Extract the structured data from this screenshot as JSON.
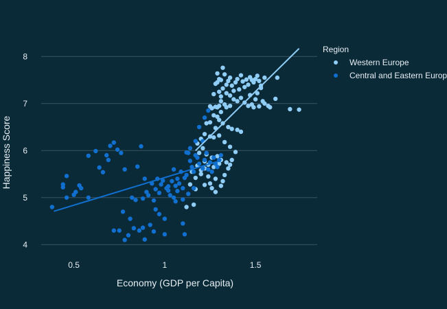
{
  "chart_data": {
    "type": "scatter",
    "xlabel": "Economy (GDP per Capita)",
    "ylabel": "Happiness Score",
    "xlim": [
      0.32,
      1.84
    ],
    "ylim": [
      3.8,
      8.5
    ],
    "xticks": [
      0.5,
      1,
      1.5
    ],
    "xtick_labels": [
      "0.5",
      "1",
      "1.5"
    ],
    "yticks": [
      4,
      5,
      6,
      7,
      8
    ],
    "ytick_labels": [
      "4",
      "5",
      "6",
      "7",
      "8"
    ],
    "grid": "horizontal",
    "legend": {
      "title": "Region",
      "placement": "right"
    },
    "series": [
      {
        "name": "Western Europe",
        "color": "#8fcdf6",
        "trendline": {
          "x": [
            1.17,
            1.74
          ],
          "y": [
            6.0,
            8.17
          ]
        },
        "points": [
          [
            1.74,
            6.87
          ],
          [
            1.69,
            6.88
          ],
          [
            1.62,
            7.55
          ],
          [
            1.61,
            7.1
          ],
          [
            1.58,
            6.92
          ],
          [
            1.57,
            6.95
          ],
          [
            1.55,
            7.0
          ],
          [
            1.55,
            7.55
          ],
          [
            1.53,
            7.38
          ],
          [
            1.52,
            7.48
          ],
          [
            1.51,
            7.59
          ],
          [
            1.5,
            7.52
          ],
          [
            1.49,
            7.45
          ],
          [
            1.48,
            7.5
          ],
          [
            1.47,
            7.56
          ],
          [
            1.46,
            7.4
          ],
          [
            1.45,
            7.51
          ],
          [
            1.44,
            7.35
          ],
          [
            1.43,
            7.47
          ],
          [
            1.42,
            7.6
          ],
          [
            1.41,
            7.3
          ],
          [
            1.4,
            7.52
          ],
          [
            1.39,
            7.45
          ],
          [
            1.38,
            7.27
          ],
          [
            1.37,
            7.38
          ],
          [
            1.36,
            7.55
          ],
          [
            1.35,
            7.48
          ],
          [
            1.34,
            7.4
          ],
          [
            1.33,
            7.62
          ],
          [
            1.32,
            7.76
          ],
          [
            1.31,
            7.5
          ],
          [
            1.3,
            7.52
          ],
          [
            1.3,
            7.25
          ],
          [
            1.29,
            7.45
          ],
          [
            1.29,
            7.64
          ],
          [
            1.28,
            7.42
          ],
          [
            1.32,
            7.32
          ],
          [
            1.34,
            7.22
          ],
          [
            1.36,
            7.17
          ],
          [
            1.38,
            7.09
          ],
          [
            1.4,
            7.05
          ],
          [
            1.42,
            7.12
          ],
          [
            1.44,
            7.02
          ],
          [
            1.46,
            6.95
          ],
          [
            1.48,
            6.98
          ],
          [
            1.5,
            7.09
          ],
          [
            1.52,
            6.94
          ],
          [
            1.54,
            7.05
          ],
          [
            1.47,
            7.18
          ],
          [
            1.49,
            6.92
          ],
          [
            1.51,
            7.22
          ],
          [
            1.53,
            7.33
          ],
          [
            1.36,
            6.95
          ],
          [
            1.34,
            6.92
          ],
          [
            1.33,
            6.98
          ],
          [
            1.31,
            7.05
          ],
          [
            1.3,
            6.95
          ],
          [
            1.28,
            6.93
          ],
          [
            1.26,
            6.9
          ],
          [
            1.25,
            6.94
          ],
          [
            1.31,
            6.82
          ],
          [
            1.29,
            6.72
          ],
          [
            1.27,
            6.75
          ],
          [
            1.3,
            6.65
          ],
          [
            1.32,
            6.58
          ],
          [
            1.35,
            6.5
          ],
          [
            1.37,
            6.46
          ],
          [
            1.4,
            6.44
          ],
          [
            1.42,
            6.4
          ],
          [
            1.28,
            6.48
          ],
          [
            1.25,
            6.6
          ],
          [
            1.23,
            6.58
          ],
          [
            1.29,
            6.92
          ],
          [
            1.31,
            7.15
          ],
          [
            1.27,
            7.2
          ],
          [
            1.22,
            6.35
          ],
          [
            1.2,
            6.25
          ],
          [
            1.18,
            6.15
          ],
          [
            1.25,
            6.3
          ],
          [
            1.27,
            6.28
          ],
          [
            1.3,
            6.32
          ],
          [
            1.33,
            6.18
          ],
          [
            1.36,
            6.08
          ],
          [
            1.39,
            5.97
          ],
          [
            1.21,
            6.05
          ],
          [
            1.19,
            5.95
          ],
          [
            1.23,
            5.92
          ],
          [
            1.26,
            5.85
          ],
          [
            1.29,
            5.88
          ],
          [
            1.31,
            5.8
          ],
          [
            1.34,
            5.75
          ],
          [
            1.36,
            5.7
          ],
          [
            1.22,
            5.77
          ],
          [
            1.24,
            5.7
          ],
          [
            1.27,
            5.65
          ],
          [
            1.3,
            5.72
          ],
          [
            1.18,
            5.68
          ],
          [
            1.15,
            5.55
          ],
          [
            1.2,
            5.5
          ],
          [
            1.24,
            5.45
          ],
          [
            1.28,
            5.4
          ],
          [
            1.32,
            5.35
          ],
          [
            1.25,
            5.3
          ],
          [
            1.31,
            5.25
          ],
          [
            1.22,
            5.27
          ],
          [
            1.14,
            5.28
          ],
          [
            1.17,
            5.18
          ],
          [
            1.28,
            5.12
          ],
          [
            1.26,
            5.2
          ],
          [
            1.2,
            5.58
          ],
          [
            1.22,
            5.62
          ],
          [
            1.17,
            5.42
          ],
          [
            1.16,
            4.85
          ],
          [
            1.12,
            4.8
          ],
          [
            1.35,
            5.62
          ],
          [
            1.33,
            5.48
          ],
          [
            1.37,
            5.8
          ]
        ]
      },
      {
        "name": "Central and Eastern Europe",
        "color": "#1170cf",
        "trendline": {
          "x": [
            0.39,
            1.31
          ],
          "y": [
            4.71,
            5.79
          ]
        },
        "points": [
          [
            0.38,
            4.8
          ],
          [
            0.44,
            5.22
          ],
          [
            0.44,
            5.28
          ],
          [
            0.46,
            5.0
          ],
          [
            0.46,
            5.46
          ],
          [
            0.5,
            5.06
          ],
          [
            0.51,
            5.12
          ],
          [
            0.53,
            5.26
          ],
          [
            0.54,
            5.2
          ],
          [
            0.58,
            5.0
          ],
          [
            0.58,
            5.89
          ],
          [
            0.62,
            5.99
          ],
          [
            0.64,
            5.64
          ],
          [
            0.66,
            5.54
          ],
          [
            0.68,
            5.9
          ],
          [
            0.69,
            5.8
          ],
          [
            0.7,
            6.1
          ],
          [
            0.72,
            6.17
          ],
          [
            0.74,
            6.02
          ],
          [
            0.76,
            5.95
          ],
          [
            0.78,
            5.6
          ],
          [
            0.82,
            5.0
          ],
          [
            0.85,
            5.66
          ],
          [
            0.87,
            6.09
          ],
          [
            0.89,
            5.4
          ],
          [
            0.9,
            5.12
          ],
          [
            0.91,
            5.05
          ],
          [
            0.93,
            5.3
          ],
          [
            0.95,
            5.18
          ],
          [
            0.96,
            5.4
          ],
          [
            0.98,
            5.28
          ],
          [
            0.99,
            5.36
          ],
          [
            1.01,
            5.2
          ],
          [
            1.02,
            5.24
          ],
          [
            1.03,
            5.05
          ],
          [
            1.04,
            5.35
          ],
          [
            1.05,
            5.6
          ],
          [
            1.06,
            5.25
          ],
          [
            1.07,
            5.4
          ],
          [
            1.08,
            5.3
          ],
          [
            1.09,
            5.55
          ],
          [
            1.1,
            5.2
          ],
          [
            1.11,
            5.42
          ],
          [
            1.12,
            5.48
          ],
          [
            1.13,
            5.95
          ],
          [
            1.14,
            5.78
          ],
          [
            1.15,
            5.65
          ],
          [
            1.16,
            5.55
          ],
          [
            1.17,
            5.9
          ],
          [
            1.18,
            5.85
          ],
          [
            1.19,
            5.72
          ],
          [
            1.21,
            5.62
          ],
          [
            1.22,
            5.8
          ],
          [
            1.23,
            5.95
          ],
          [
            1.24,
            5.6
          ],
          [
            1.25,
            5.75
          ],
          [
            1.26,
            5.55
          ],
          [
            1.27,
            5.85
          ],
          [
            1.28,
            5.72
          ],
          [
            1.29,
            5.65
          ],
          [
            1.3,
            5.8
          ],
          [
            1.31,
            5.9
          ],
          [
            1.12,
            5.96
          ],
          [
            1.14,
            6.05
          ],
          [
            1.19,
            6.5
          ],
          [
            1.22,
            6.7
          ],
          [
            1.24,
            6.85
          ],
          [
            1.21,
            6.2
          ],
          [
            1.17,
            6.2
          ],
          [
            1.16,
            5.2
          ],
          [
            1.13,
            5.08
          ],
          [
            1.1,
            4.96
          ],
          [
            1.06,
            4.92
          ],
          [
            1.02,
            5.15
          ],
          [
            0.97,
            5.1
          ],
          [
            0.94,
            4.94
          ],
          [
            0.88,
            4.98
          ],
          [
            0.84,
            4.95
          ],
          [
            0.77,
            4.7
          ],
          [
            0.81,
            4.55
          ],
          [
            0.75,
            4.3
          ],
          [
            0.78,
            4.1
          ],
          [
            0.83,
            4.35
          ],
          [
            0.86,
            4.3
          ],
          [
            0.88,
            4.36
          ],
          [
            0.89,
            4.11
          ],
          [
            0.92,
            4.42
          ],
          [
            0.94,
            4.28
          ],
          [
            0.97,
            4.65
          ],
          [
            1.0,
            4.22
          ],
          [
            1.11,
            4.22
          ],
          [
            1.1,
            4.45
          ],
          [
            0.72,
            4.3
          ],
          [
            0.8,
            4.2
          ],
          [
            0.95,
            4.75
          ],
          [
            1.0,
            4.55
          ],
          [
            1.05,
            5.0
          ],
          [
            1.07,
            5.14
          ]
        ]
      }
    ]
  }
}
